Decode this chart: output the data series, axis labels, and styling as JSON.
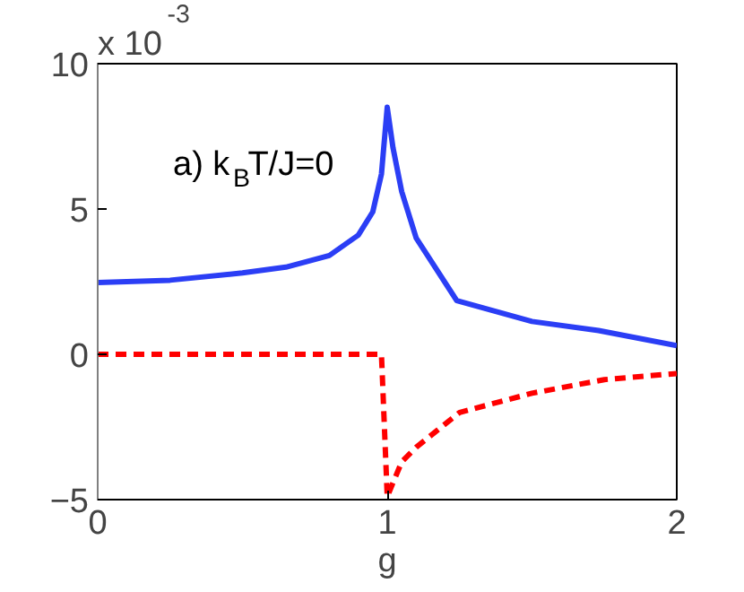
{
  "chart_data": {
    "type": "line",
    "xlabel": "g",
    "annotations": [
      "x 10$^{-3}$",
      "a) k$_{B}$T/J=0"
    ],
    "xlim": [
      0,
      2
    ],
    "ylim": [
      -5,
      10
    ],
    "xticks": [
      0,
      1,
      2
    ],
    "yticks": [
      -5,
      0,
      5,
      10
    ],
    "grid": false,
    "series": [
      {
        "color": "#2b3ef5",
        "line_style": "solid",
        "x": [
          0,
          0.25,
          0.5,
          0.65,
          0.8,
          0.9,
          0.95,
          0.98,
          1.0,
          1.02,
          1.05,
          1.1,
          1.24,
          1.5,
          1.73,
          2.0
        ],
        "values": [
          2.47,
          2.55,
          2.8,
          3.0,
          3.4,
          4.1,
          4.9,
          6.2,
          8.5,
          7.1,
          5.6,
          4.0,
          1.85,
          1.13,
          0.82,
          0.3
        ]
      },
      {
        "color": "#ff0000",
        "line_style": "dashed",
        "x": [
          0,
          0.5,
          0.98,
          1.0,
          1.05,
          1.1,
          1.25,
          1.5,
          1.75,
          2.0
        ],
        "values": [
          0,
          0,
          0,
          -4.9,
          -3.7,
          -3.2,
          -2.0,
          -1.34,
          -0.87,
          -0.66
        ]
      }
    ]
  }
}
